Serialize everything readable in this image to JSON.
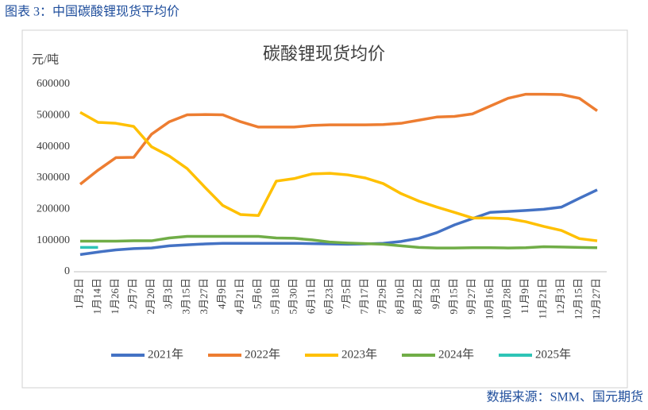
{
  "caption": "图表 3：中国碳酸锂现货平均价",
  "source": "数据来源：SMM、国元期货",
  "chart_data": {
    "type": "line",
    "title": "碳酸锂现货均价",
    "ylabel": "元/吨",
    "categories": [
      "1月2日",
      "1月14日",
      "1月26日",
      "2月7日",
      "2月20日",
      "3月3日",
      "3月15日",
      "3月27日",
      "4月9日",
      "4月21日",
      "5月6日",
      "5月18日",
      "5月30日",
      "6月11日",
      "6月23日",
      "7月5日",
      "7月17日",
      "7月29日",
      "8月10日",
      "8月22日",
      "9月3日",
      "9月15日",
      "9月27日",
      "10月16日",
      "10月28日",
      "11月9日",
      "11月21日",
      "12月3日",
      "12月15日",
      "12月27日"
    ],
    "series": [
      {
        "name": "2021年",
        "color": "#4472c4",
        "values": [
          55000,
          63000,
          70000,
          74000,
          76000,
          83000,
          86000,
          89000,
          91000,
          91000,
          91000,
          91000,
          91000,
          90000,
          89000,
          88000,
          89000,
          91000,
          97000,
          107000,
          125000,
          150000,
          170000,
          190000,
          193000,
          196000,
          200000,
          207000,
          235000,
          262000
        ]
      },
      {
        "name": "2022年",
        "color": "#ed7d31",
        "values": [
          280000,
          325000,
          365000,
          366000,
          440000,
          480000,
          502000,
          503000,
          502000,
          480000,
          463000,
          463000,
          463000,
          468000,
          470000,
          470000,
          470000,
          471000,
          475000,
          485000,
          495000,
          497000,
          505000,
          530000,
          555000,
          568000,
          568000,
          567000,
          555000,
          515000
        ]
      },
      {
        "name": "2023年",
        "color": "#ffc000",
        "values": [
          510000,
          478000,
          475000,
          465000,
          400000,
          370000,
          330000,
          270000,
          212000,
          183000,
          180000,
          290000,
          298000,
          313000,
          315000,
          310000,
          300000,
          282000,
          250000,
          226000,
          207000,
          190000,
          172000,
          172000,
          170000,
          160000,
          145000,
          132000,
          106000,
          99000
        ]
      },
      {
        "name": "2024年",
        "color": "#70ad47",
        "values": [
          98000,
          98000,
          98000,
          99000,
          99000,
          108000,
          113000,
          113000,
          113000,
          113000,
          113000,
          108000,
          107000,
          102000,
          95000,
          92000,
          90000,
          88000,
          83000,
          78000,
          76000,
          76000,
          77000,
          77000,
          76000,
          77000,
          80000,
          79000,
          78000,
          77000
        ]
      },
      {
        "name": "2025年",
        "color": "#2ec4b6",
        "values": [
          78000,
          78000,
          null,
          null,
          null,
          null,
          null,
          null,
          null,
          null,
          null,
          null,
          null,
          null,
          null,
          null,
          null,
          null,
          null,
          null,
          null,
          null,
          null,
          null,
          null,
          null,
          null,
          null,
          null,
          null
        ]
      }
    ],
    "ylim": [
      0,
      600000
    ],
    "yticks": [
      0,
      100000,
      200000,
      300000,
      400000,
      500000,
      600000
    ],
    "grid": false,
    "legend": "bottom"
  }
}
